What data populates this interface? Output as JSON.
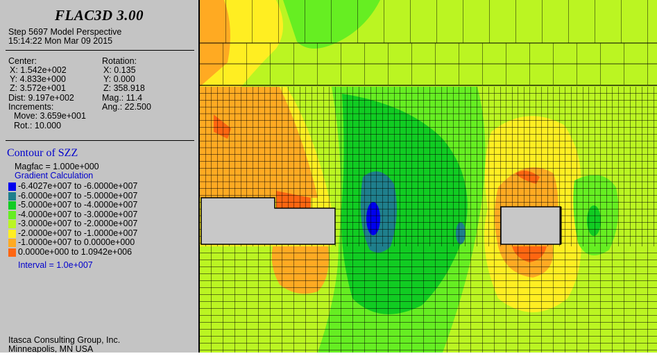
{
  "panel": {
    "title": "FLAC3D 3.00",
    "step_line": "Step 5697  Model Perspective",
    "time_line": "15:14:22 Mon Mar 09 2015",
    "center_label": "Center:",
    "center_x": "X: 1.542e+002",
    "center_y": "Y: 4.833e+000",
    "center_z": "Z: 3.572e+001",
    "dist": "Dist: 9.197e+002",
    "increments": "Increments:",
    "move": "Move: 3.659e+001",
    "rot": "Rot.:  10.000",
    "rotation_label": "Rotation:",
    "rot_x": "X:   0.135",
    "rot_y": "Y:   0.000",
    "rot_z": "Z: 358.918",
    "mag": "Mag.:     11.4",
    "ang": "Ang.: 22.500",
    "contour_title": "Contour of SZZ",
    "magfac": "Magfac =  1.000e+000",
    "gradient": "Gradient Calculation",
    "legend": [
      {
        "label": "-6.4027e+007 to -6.0000e+007",
        "color": "#0000ee"
      },
      {
        "label": "-6.0000e+007 to -5.0000e+007",
        "color": "#1f7f8c"
      },
      {
        "label": "-5.0000e+007 to -4.0000e+007",
        "color": "#11cc22"
      },
      {
        "label": "-4.0000e+007 to -3.0000e+007",
        "color": "#66ee22"
      },
      {
        "label": "-3.0000e+007 to -2.0000e+007",
        "color": "#bbf522"
      },
      {
        "label": "-2.0000e+007 to -1.0000e+007",
        "color": "#ffee22"
      },
      {
        "label": "-1.0000e+007 to  0.0000e+000",
        "color": "#ffaa22"
      },
      {
        "label": " 0.0000e+000 to  1.0942e+006",
        "color": "#ff6611"
      }
    ],
    "interval": "Interval =  1.0e+007",
    "company": "Itasca Consulting Group, Inc.",
    "location": "Minneapolis, MN  USA"
  },
  "colors": {
    "panel_bg": "#c4c4c4",
    "excavation": "#c8c8c8"
  }
}
